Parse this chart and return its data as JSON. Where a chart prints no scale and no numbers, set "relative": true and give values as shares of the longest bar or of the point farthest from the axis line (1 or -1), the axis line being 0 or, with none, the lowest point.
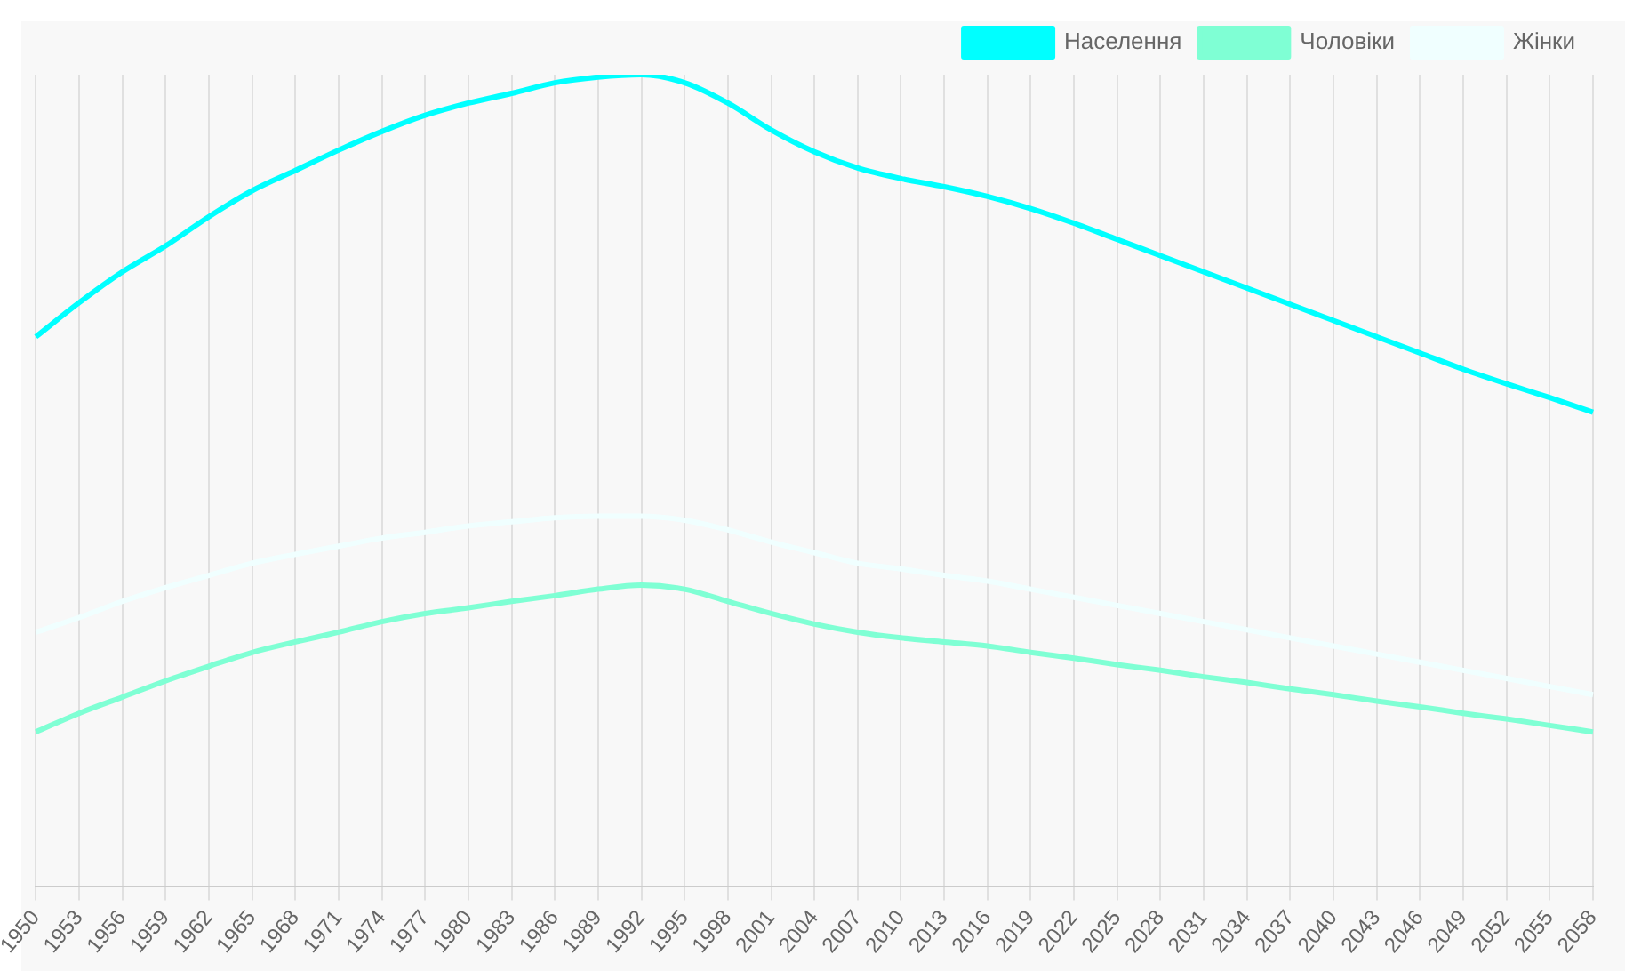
{
  "chart_data": {
    "type": "line",
    "relative": true,
    "grid": "x",
    "legend": "top right",
    "marker": "none",
    "line_style": "solid",
    "categories": [
      "1950",
      "1953",
      "1956",
      "1959",
      "1962",
      "1965",
      "1968",
      "1971",
      "1974",
      "1977",
      "1980",
      "1983",
      "1986",
      "1989",
      "1992",
      "1995",
      "1998",
      "2001",
      "2004",
      "2007",
      "2010",
      "2013",
      "2016",
      "2019",
      "2022",
      "2025",
      "2028",
      "2031",
      "2034",
      "2037",
      "2040",
      "2043",
      "2046",
      "2049",
      "2052",
      "2055",
      "2058"
    ],
    "series": [
      {
        "name": "Населення",
        "color": "#00ffff",
        "values": [
          0.677,
          0.719,
          0.757,
          0.789,
          0.825,
          0.857,
          0.882,
          0.907,
          0.93,
          0.95,
          0.965,
          0.977,
          0.99,
          0.997,
          1,
          0.99,
          0.965,
          0.932,
          0.905,
          0.885,
          0.872,
          0.862,
          0.85,
          0.835,
          0.817,
          0.797,
          0.777,
          0.757,
          0.737,
          0.717,
          0.697,
          0.677,
          0.657,
          0.637,
          0.619,
          0.602,
          0.584
        ]
      },
      {
        "name": "Чоловіки",
        "color": "#7fffd4",
        "values": [
          0.19,
          0.213,
          0.233,
          0.253,
          0.271,
          0.288,
          0.301,
          0.313,
          0.326,
          0.336,
          0.343,
          0.351,
          0.358,
          0.366,
          0.371,
          0.366,
          0.351,
          0.336,
          0.323,
          0.313,
          0.306,
          0.301,
          0.296,
          0.288,
          0.281,
          0.273,
          0.266,
          0.258,
          0.251,
          0.243,
          0.236,
          0.228,
          0.221,
          0.213,
          0.206,
          0.198,
          0.19
        ]
      },
      {
        "name": "Жінки",
        "color": "#f0ffff",
        "values": [
          0.313,
          0.331,
          0.351,
          0.368,
          0.383,
          0.398,
          0.409,
          0.419,
          0.429,
          0.436,
          0.444,
          0.449,
          0.454,
          0.456,
          0.456,
          0.451,
          0.439,
          0.424,
          0.411,
          0.398,
          0.391,
          0.383,
          0.376,
          0.366,
          0.356,
          0.346,
          0.336,
          0.326,
          0.316,
          0.306,
          0.296,
          0.286,
          0.276,
          0.266,
          0.256,
          0.246,
          0.236
        ]
      }
    ]
  }
}
